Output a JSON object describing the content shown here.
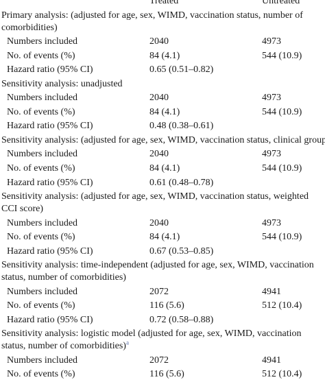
{
  "header": {
    "treated": "Treated",
    "untreated": "Untreated"
  },
  "sections": [
    {
      "title": "Primary analysis: (adjusted for age, sex, WIMD, vaccination status, number of comorbidities)",
      "rows": [
        {
          "label": "Numbers included",
          "treated": "2040",
          "untreated": "4973"
        },
        {
          "label": "No. of events (%)",
          "treated": "84 (4.1)",
          "untreated": "544 (10.9)"
        },
        {
          "label": "Hazard ratio (95% CI)",
          "treated": "0.65 (0.51–0.82)",
          "untreated": ""
        }
      ]
    },
    {
      "title": "Sensitivity analysis: unadjusted",
      "rows": [
        {
          "label": "Numbers included",
          "treated": "2040",
          "untreated": "4973"
        },
        {
          "label": "No. of events (%)",
          "treated": "84 (4.1)",
          "untreated": "544 (10.9)"
        },
        {
          "label": "Hazard ratio (95% CI)",
          "treated": "0.48 (0.38–0.61)",
          "untreated": ""
        }
      ]
    },
    {
      "title": "Sensitivity analysis: (adjusted for age, sex, WIMD, vaccination status, clinical group)",
      "rows": [
        {
          "label": "Numbers included",
          "treated": "2040",
          "untreated": "4973"
        },
        {
          "label": "No. of events (%)",
          "treated": "84 (4.1)",
          "untreated": "544 (10.9)"
        },
        {
          "label": "Hazard ratio (95% CI)",
          "treated": "0.61 (0.48–0.78)",
          "untreated": ""
        }
      ]
    },
    {
      "title": "Sensitivity analysis: (adjusted for age, sex, WIMD, vaccination status, weighted CCI score)",
      "rows": [
        {
          "label": "Numbers included",
          "treated": "2040",
          "untreated": "4973"
        },
        {
          "label": "No. of events (%)",
          "treated": "84 (4.1)",
          "untreated": "544 (10.9)"
        },
        {
          "label": "Hazard ratio (95% CI)",
          "treated": "0.67 (0.53–0.85)",
          "untreated": ""
        }
      ]
    },
    {
      "title": "Sensitivity analysis: time-independent (adjusted for age, sex, WIMD, vaccination status, number of comorbidities)",
      "rows": [
        {
          "label": "Numbers included",
          "treated": "2072",
          "untreated": "4941"
        },
        {
          "label": "No. of events (%)",
          "treated": "116 (5.6)",
          "untreated": "512 (10.4)"
        },
        {
          "label": "Hazard ratio (95% CI)",
          "treated": "0.72 (0.58–0.88)",
          "untreated": ""
        }
      ]
    },
    {
      "title": "Sensitivity analysis: logistic model (adjusted for age, sex, WIMD, vaccination status, number of comorbidities)",
      "title_sup": "a",
      "rows": [
        {
          "label": "Numbers included",
          "treated": "2072",
          "untreated": "4941"
        },
        {
          "label": "No. of events (%)",
          "treated": "116 (5.6)",
          "untreated": "512 (10.4)"
        }
      ]
    }
  ]
}
